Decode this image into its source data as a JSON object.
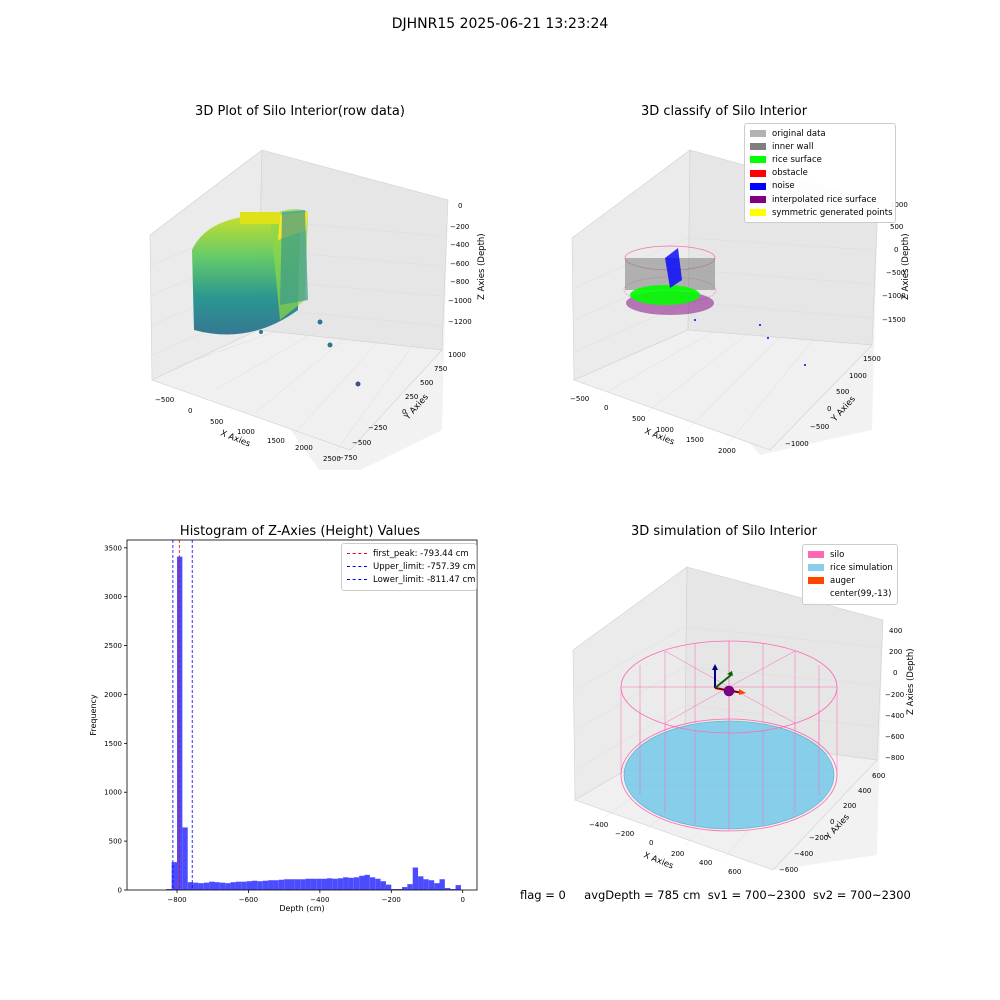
{
  "suptitle": "DJHNR15 2025-06-21 13:23:24",
  "panels": {
    "raw": {
      "title": "3D Plot of Silo Interior(row data)",
      "xlabel": "X Axies",
      "ylabel": "Y Axies",
      "zlabel": "Z Axies (Depth)",
      "xticks": [
        "−500",
        "0",
        "500",
        "1000",
        "1500",
        "2000",
        "2500"
      ],
      "yticks": [
        "−750",
        "−500",
        "−250",
        "0",
        "250",
        "500",
        "750",
        "1000"
      ],
      "zticks": [
        "0",
        "−200",
        "−400",
        "−600",
        "−800",
        "−1000",
        "−1200"
      ]
    },
    "classify": {
      "title": "3D classify of Silo Interior",
      "xlabel": "X Axies",
      "ylabel": "Y Axies",
      "zlabel": "Z Axies (Depth)",
      "xticks": [
        "−500",
        "0",
        "500",
        "1000",
        "1500",
        "2000"
      ],
      "yticks": [
        "−1000",
        "−500",
        "0",
        "500",
        "1000",
        "1500"
      ],
      "zticks": [
        "1000",
        "500",
        "0",
        "−500",
        "−1000",
        "−1500"
      ],
      "legend": [
        {
          "label": "original data",
          "color": "#b3b3b3"
        },
        {
          "label": "inner wall",
          "color": "#808080"
        },
        {
          "label": "rice surface",
          "color": "#00ff00"
        },
        {
          "label": "obstacle",
          "color": "#ff0000"
        },
        {
          "label": "noise",
          "color": "#0000ff"
        },
        {
          "label": "interpolated rice surface",
          "color": "#800080"
        },
        {
          "label": "symmetric generated points",
          "color": "#ffff00"
        }
      ]
    },
    "simulation": {
      "title": "3D simulation of Silo Interior",
      "xlabel": "X Axies",
      "ylabel": "Y Axies",
      "zlabel": "Z Axies (Depth)",
      "xticks": [
        "−400",
        "−200",
        "0",
        "200",
        "400",
        "600"
      ],
      "yticks": [
        "−600",
        "−400",
        "−200",
        "0",
        "200",
        "400",
        "600"
      ],
      "zticks": [
        "400",
        "200",
        "0",
        "−200",
        "−400",
        "−600",
        "−800"
      ],
      "legend": [
        {
          "label": "silo",
          "color": "#ff69b4"
        },
        {
          "label": "rice simulation",
          "color": "#87ceeb"
        },
        {
          "label": "auger",
          "color": "#ff4500"
        },
        {
          "label": "center(99,-13)",
          "color": ""
        }
      ]
    }
  },
  "chart_data": [
    {
      "type": "bar",
      "title": "Histogram of Z-Axies (Height) Values",
      "xlabel": "Depth (cm)",
      "ylabel": "Frequency",
      "xlim": [
        -940,
        40
      ],
      "ylim": [
        0,
        3580
      ],
      "bin_width": 15,
      "xticks": [
        -800,
        -600,
        -400,
        -200,
        0
      ],
      "yticks": [
        0,
        500,
        1000,
        1500,
        2000,
        2500,
        3000,
        3500
      ],
      "bins": [
        {
          "x": -830,
          "y": 10
        },
        {
          "x": -815,
          "y": 285
        },
        {
          "x": -800,
          "y": 3410
        },
        {
          "x": -785,
          "y": 640
        },
        {
          "x": -770,
          "y": 80
        },
        {
          "x": -755,
          "y": 75
        },
        {
          "x": -740,
          "y": 70
        },
        {
          "x": -725,
          "y": 75
        },
        {
          "x": -710,
          "y": 85
        },
        {
          "x": -695,
          "y": 80
        },
        {
          "x": -680,
          "y": 75
        },
        {
          "x": -665,
          "y": 70
        },
        {
          "x": -650,
          "y": 80
        },
        {
          "x": -635,
          "y": 85
        },
        {
          "x": -620,
          "y": 85
        },
        {
          "x": -605,
          "y": 90
        },
        {
          "x": -590,
          "y": 95
        },
        {
          "x": -575,
          "y": 90
        },
        {
          "x": -560,
          "y": 95
        },
        {
          "x": -545,
          "y": 100
        },
        {
          "x": -530,
          "y": 100
        },
        {
          "x": -515,
          "y": 105
        },
        {
          "x": -500,
          "y": 110
        },
        {
          "x": -485,
          "y": 110
        },
        {
          "x": -470,
          "y": 110
        },
        {
          "x": -455,
          "y": 110
        },
        {
          "x": -440,
          "y": 115
        },
        {
          "x": -425,
          "y": 115
        },
        {
          "x": -410,
          "y": 115
        },
        {
          "x": -395,
          "y": 115
        },
        {
          "x": -380,
          "y": 120
        },
        {
          "x": -365,
          "y": 115
        },
        {
          "x": -350,
          "y": 120
        },
        {
          "x": -335,
          "y": 130
        },
        {
          "x": -320,
          "y": 125
        },
        {
          "x": -305,
          "y": 130
        },
        {
          "x": -290,
          "y": 145
        },
        {
          "x": -275,
          "y": 155
        },
        {
          "x": -260,
          "y": 130
        },
        {
          "x": -245,
          "y": 115
        },
        {
          "x": -230,
          "y": 90
        },
        {
          "x": -215,
          "y": 55
        },
        {
          "x": -200,
          "y": 10
        },
        {
          "x": -185,
          "y": 10
        },
        {
          "x": -170,
          "y": 30
        },
        {
          "x": -155,
          "y": 60
        },
        {
          "x": -140,
          "y": 230
        },
        {
          "x": -125,
          "y": 140
        },
        {
          "x": -110,
          "y": 110
        },
        {
          "x": -95,
          "y": 100
        },
        {
          "x": -80,
          "y": 70
        },
        {
          "x": -65,
          "y": 110
        },
        {
          "x": -50,
          "y": 20
        },
        {
          "x": -35,
          "y": 10
        },
        {
          "x": -20,
          "y": 50
        }
      ],
      "vlines": [
        {
          "label": "first_peak: -793.44 cm",
          "x": -793.44,
          "color": "#ff0000"
        },
        {
          "label": "Upper_limit: -757.39 cm",
          "x": -757.39,
          "color": "#0000ff"
        },
        {
          "label": "Lower_limit: -811.47 cm",
          "x": -811.47,
          "color": "#0000ff"
        }
      ],
      "bar_color": "#4c4cff"
    }
  ],
  "footer": {
    "flag": "flag = 0",
    "avg_depth": "avgDepth = 785 cm",
    "sv1": "sv1 = 700~2300",
    "sv2": "sv2 = 700~2300"
  }
}
